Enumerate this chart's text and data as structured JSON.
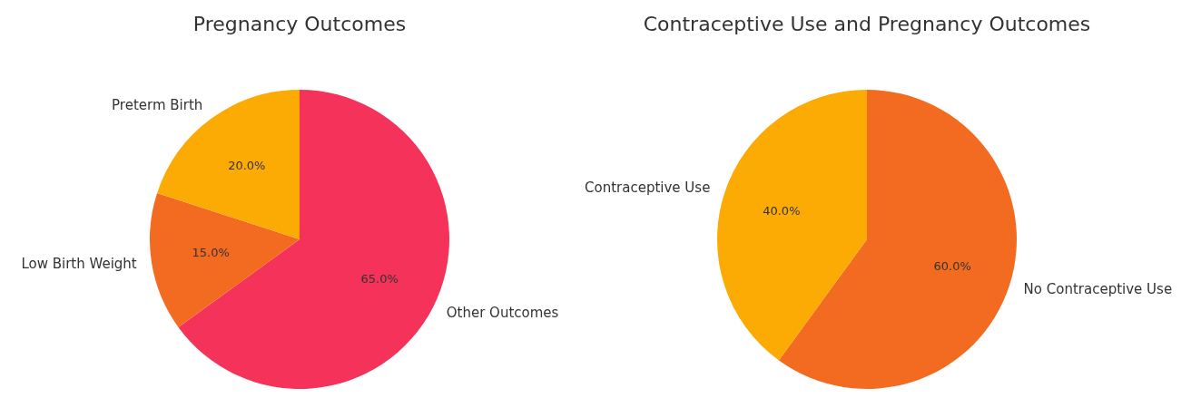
{
  "chart_data": [
    {
      "type": "pie",
      "title": "Pregnancy Outcomes",
      "categories": [
        "Other Outcomes",
        "Low Birth Weight",
        "Preterm Birth"
      ],
      "values": [
        65,
        15,
        20
      ],
      "colors": [
        "#f53259",
        "#f26b21",
        "#fbab04"
      ],
      "value_labels": [
        "65.0%",
        "15.0%",
        "20.0%"
      ]
    },
    {
      "type": "pie",
      "title": "Contraceptive Use and Pregnancy Outcomes",
      "categories": [
        "No Contraceptive Use",
        "Contraceptive Use"
      ],
      "values": [
        60,
        40
      ],
      "colors": [
        "#f26b21",
        "#fbab04"
      ],
      "value_labels": [
        "60.0%",
        "40.0%"
      ]
    }
  ]
}
